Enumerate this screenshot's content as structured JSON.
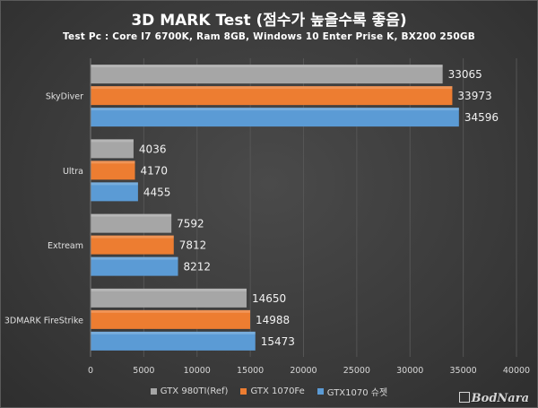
{
  "colors": {
    "background": "#3a3a3a",
    "text": "#e8e8e8",
    "grid": "#555555"
  },
  "watermark": "BodNara",
  "chart_data": {
    "type": "bar",
    "orientation": "horizontal",
    "title": "3D MARK Test (점수가 높을수록 좋음)",
    "subtitle": "Test Pc : Core I7 6700K, Ram 8GB, Windows 10 Enter Prise K, BX200 250GB",
    "categories": [
      "SkyDiver",
      "Ultra",
      "Extream",
      "3DMARK FireStrike"
    ],
    "series": [
      {
        "name": "GTX 980TI(Ref)",
        "color": "#a6a6a6",
        "values": [
          33065,
          4036,
          7592,
          14650
        ]
      },
      {
        "name": "GTX 1070Fe",
        "color": "#ed7d31",
        "values": [
          33973,
          4170,
          7812,
          14988
        ]
      },
      {
        "name": "GTX1070 슈젯",
        "color": "#5b9bd5",
        "values": [
          34596,
          4455,
          8212,
          15473
        ]
      }
    ],
    "xlim": [
      0,
      40000
    ],
    "xticks": [
      0,
      5000,
      10000,
      15000,
      20000,
      25000,
      30000,
      35000,
      40000
    ],
    "grid": true,
    "legend_position": "bottom",
    "data_labels": true
  }
}
